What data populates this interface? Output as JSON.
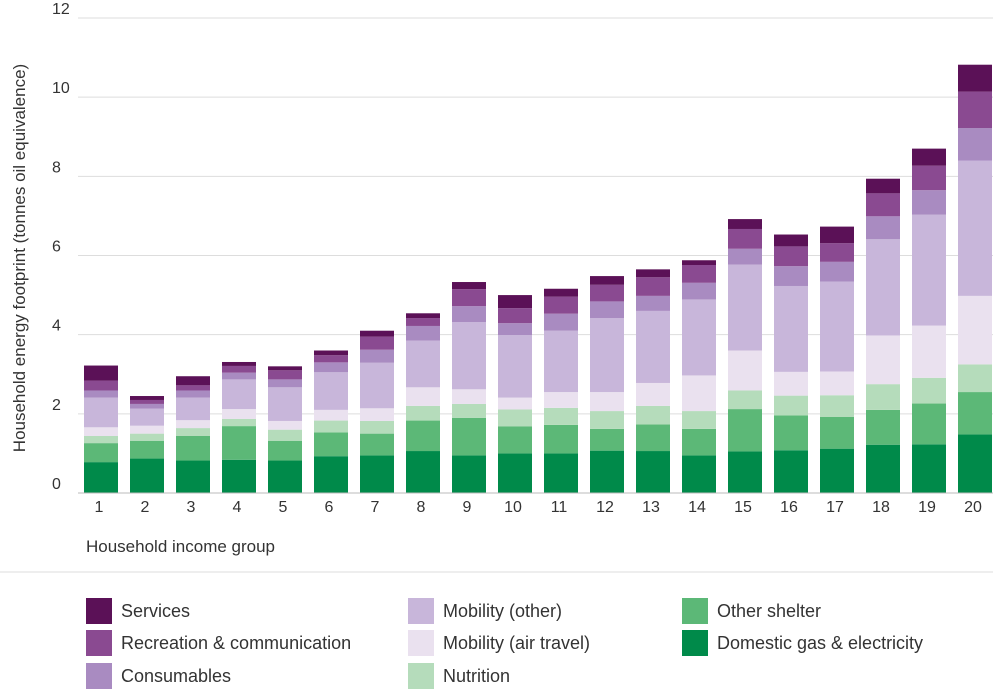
{
  "chart_data": {
    "type": "bar",
    "stacked": true,
    "xlabel": "Household income group",
    "ylabel": "Household energy footprint (tonnes oil equivalence)",
    "ylim": [
      0,
      12
    ],
    "yticks": [
      0,
      2,
      4,
      6,
      8,
      10,
      12
    ],
    "grid": true,
    "legend_position": "bottom",
    "categories": [
      "1",
      "2",
      "3",
      "4",
      "5",
      "6",
      "7",
      "8",
      "9",
      "10",
      "11",
      "12",
      "13",
      "14",
      "15",
      "16",
      "17",
      "18",
      "19",
      "20"
    ],
    "series": [
      {
        "name": "Domestic gas & electricity",
        "color": "#008a4a",
        "values": [
          0.78,
          0.87,
          0.82,
          0.84,
          0.82,
          0.93,
          0.95,
          1.06,
          0.95,
          1.0,
          1.0,
          1.07,
          1.06,
          0.95,
          1.05,
          1.08,
          1.12,
          1.22,
          1.23,
          1.48
        ]
      },
      {
        "name": "Other shelter",
        "color": "#5cb877",
        "values": [
          0.48,
          0.45,
          0.62,
          0.85,
          0.5,
          0.6,
          0.55,
          0.77,
          0.95,
          0.68,
          0.72,
          0.55,
          0.67,
          0.67,
          1.07,
          0.88,
          0.8,
          0.88,
          1.03,
          1.07
        ]
      },
      {
        "name": "Nutrition",
        "color": "#b5dcbb",
        "values": [
          0.18,
          0.18,
          0.2,
          0.18,
          0.28,
          0.3,
          0.32,
          0.37,
          0.35,
          0.43,
          0.43,
          0.45,
          0.47,
          0.45,
          0.47,
          0.5,
          0.55,
          0.65,
          0.65,
          0.7
        ]
      },
      {
        "name": "Mobility (air travel)",
        "color": "#eae1ef",
        "values": [
          0.22,
          0.2,
          0.2,
          0.25,
          0.22,
          0.27,
          0.32,
          0.47,
          0.37,
          0.3,
          0.4,
          0.48,
          0.58,
          0.9,
          1.01,
          0.6,
          0.6,
          1.23,
          1.32,
          1.73
        ]
      },
      {
        "name": "Mobility (other)",
        "color": "#c8b6da",
        "values": [
          0.75,
          0.43,
          0.57,
          0.75,
          0.85,
          0.95,
          1.15,
          1.18,
          1.7,
          1.58,
          1.55,
          1.87,
          1.82,
          1.92,
          2.17,
          2.17,
          2.27,
          2.43,
          2.8,
          3.42
        ]
      },
      {
        "name": "Consumables",
        "color": "#a98bc1",
        "values": [
          0.18,
          0.12,
          0.18,
          0.17,
          0.2,
          0.25,
          0.33,
          0.37,
          0.4,
          0.3,
          0.43,
          0.42,
          0.38,
          0.42,
          0.4,
          0.5,
          0.5,
          0.58,
          0.62,
          0.82
        ]
      },
      {
        "name": "Recreation & communication",
        "color": "#8a4a91",
        "values": [
          0.25,
          0.1,
          0.13,
          0.17,
          0.23,
          0.18,
          0.33,
          0.2,
          0.43,
          0.38,
          0.43,
          0.42,
          0.47,
          0.45,
          0.5,
          0.5,
          0.47,
          0.58,
          0.62,
          0.92
        ]
      },
      {
        "name": "Services",
        "color": "#5b1157",
        "values": [
          0.38,
          0.1,
          0.23,
          0.1,
          0.1,
          0.12,
          0.15,
          0.12,
          0.18,
          0.33,
          0.2,
          0.22,
          0.2,
          0.12,
          0.25,
          0.3,
          0.42,
          0.37,
          0.43,
          0.68
        ]
      }
    ],
    "legend_order": [
      "Services",
      "Recreation & communication",
      "Consumables",
      "Mobility (other)",
      "Mobility (air travel)",
      "Nutrition",
      "Other shelter",
      "Domestic gas & electricity"
    ]
  }
}
